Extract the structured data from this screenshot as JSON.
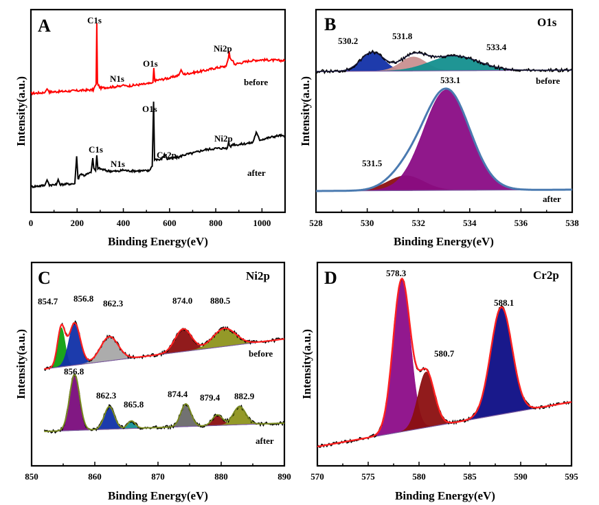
{
  "chart_data": [
    {
      "panel_label": "A",
      "type": "line",
      "xlabel": "Binding Energy(eV)",
      "ylabel": "Intensity(a.u.)",
      "xlim": [
        0,
        1100
      ],
      "xticks": [
        0,
        200,
        400,
        600,
        800,
        1000
      ],
      "series": [
        {
          "name": "before",
          "color": "#ff0000",
          "points": [
            [
              0,
              0.6
            ],
            [
              60,
              0.605
            ],
            [
              70,
              0.625
            ],
            [
              80,
              0.608
            ],
            [
              150,
              0.612
            ],
            [
              270,
              0.62
            ],
            [
              282,
              0.65
            ],
            [
              285,
              0.985
            ],
            [
              288,
              0.655
            ],
            [
              300,
              0.63
            ],
            [
              390,
              0.64
            ],
            [
              400,
              0.648
            ],
            [
              410,
              0.64
            ],
            [
              520,
              0.655
            ],
            [
              528,
              0.66
            ],
            [
              532,
              0.74
            ],
            [
              536,
              0.67
            ],
            [
              600,
              0.685
            ],
            [
              640,
              0.7
            ],
            [
              650,
              0.73
            ],
            [
              660,
              0.705
            ],
            [
              750,
              0.725
            ],
            [
              800,
              0.74
            ],
            [
              845,
              0.75
            ],
            [
              855,
              0.795
            ],
            [
              858,
              0.83
            ],
            [
              862,
              0.79
            ],
            [
              875,
              0.78
            ],
            [
              880,
              0.76
            ],
            [
              950,
              0.78
            ],
            [
              1000,
              0.785
            ],
            [
              1100,
              0.78
            ]
          ]
        },
        {
          "name": "after",
          "color": "#000000",
          "points": [
            [
              0,
              0.088
            ],
            [
              60,
              0.095
            ],
            [
              70,
              0.125
            ],
            [
              80,
              0.098
            ],
            [
              110,
              0.098
            ],
            [
              118,
              0.128
            ],
            [
              126,
              0.1
            ],
            [
              190,
              0.105
            ],
            [
              198,
              0.255
            ],
            [
              204,
              0.128
            ],
            [
              215,
              0.16
            ],
            [
              230,
              0.15
            ],
            [
              260,
              0.165
            ],
            [
              268,
              0.245
            ],
            [
              272,
              0.19
            ],
            [
              280,
              0.175
            ],
            [
              285,
              0.26
            ],
            [
              290,
              0.19
            ],
            [
              330,
              0.175
            ],
            [
              380,
              0.172
            ],
            [
              400,
              0.18
            ],
            [
              420,
              0.175
            ],
            [
              510,
              0.175
            ],
            [
              525,
              0.2
            ],
            [
              531,
              0.555
            ],
            [
              535,
              0.24
            ],
            [
              560,
              0.235
            ],
            [
              575,
              0.255
            ],
            [
              578,
              0.27
            ],
            [
              590,
              0.24
            ],
            [
              640,
              0.25
            ],
            [
              660,
              0.262
            ],
            [
              700,
              0.272
            ],
            [
              750,
              0.29
            ],
            [
              800,
              0.298
            ],
            [
              850,
              0.3
            ],
            [
              855,
              0.33
            ],
            [
              862,
              0.305
            ],
            [
              875,
              0.322
            ],
            [
              890,
              0.318
            ],
            [
              960,
              0.33
            ],
            [
              975,
              0.385
            ],
            [
              990,
              0.345
            ],
            [
              1040,
              0.36
            ],
            [
              1080,
              0.37
            ],
            [
              1100,
              0.36
            ]
          ]
        }
      ],
      "annotations": [
        {
          "text": "C1s",
          "x": 285,
          "y": 1.05
        },
        {
          "text": "N1s",
          "x": 388,
          "y": 0.73
        },
        {
          "text": "O1s",
          "x": 530,
          "y": 0.82
        },
        {
          "text": "Ni2p",
          "x": 848,
          "y": 0.92
        },
        {
          "text": "before",
          "x": 1010,
          "y": 0.66
        },
        {
          "text": "O1s",
          "x": 530,
          "y": 0.62
        },
        {
          "text": "C1s",
          "x": 295,
          "y": 0.37
        },
        {
          "text": "N1s",
          "x": 390,
          "y": 0.21
        },
        {
          "text": "Cr2p",
          "x": 600,
          "y": 0.34
        },
        {
          "text": "Ni2p",
          "x": 855,
          "y": 0.39
        },
        {
          "text": "after",
          "x": 1000,
          "y": 0.16
        }
      ]
    },
    {
      "panel_label": "B",
      "title": "O1s",
      "type": "line",
      "xlabel": "Binding Energy(eV)",
      "ylabel": "Intensity(a.u.)",
      "xlim": [
        528,
        538
      ],
      "xticks": [
        528,
        530,
        532,
        534,
        536,
        538
      ],
      "curves": [
        {
          "condition": "before",
          "components": [
            {
              "center": 530.2,
              "height": 0.115,
              "width": 0.45,
              "fill": "#1230a8"
            },
            {
              "center": 531.8,
              "height": 0.085,
              "width": 0.5,
              "fill": "#c99090"
            },
            {
              "center": 533.4,
              "height": 0.09,
              "width": 0.95,
              "fill": "#138f8e"
            }
          ]
        },
        {
          "condition": "after",
          "components": [
            {
              "center": 531.5,
              "height": 0.09,
              "width": 0.7,
              "fill": "#8b0f10"
            },
            {
              "center": 533.1,
              "height": 0.61,
              "width": 0.9,
              "fill": "#8a0c85"
            }
          ]
        }
      ],
      "annotations": [
        {
          "text": "530.2",
          "x": 530.2
        },
        {
          "text": "531.8",
          "x": 531.8
        },
        {
          "text": "533.4",
          "x": 533.4
        },
        {
          "text": "533.1",
          "x": 533.1
        },
        {
          "text": "531.5",
          "x": 531.5
        },
        {
          "text": "before",
          "x": 537.5
        },
        {
          "text": "after",
          "x": 537.5
        }
      ]
    },
    {
      "panel_label": "C",
      "title": "Ni2p",
      "type": "line",
      "xlabel": "Binding Energy(eV)",
      "ylabel": "Intensity(a.u.)",
      "xlim": [
        850,
        890
      ],
      "xticks": [
        850,
        860,
        870,
        880,
        890
      ],
      "curves": [
        {
          "condition": "before",
          "components": [
            {
              "center": 854.7,
              "height": 0.26,
              "width": 0.6,
              "fill": "#0f9f0f"
            },
            {
              "center": 856.8,
              "height": 0.28,
              "width": 0.9,
              "fill": "#1030a8"
            },
            {
              "center": 862.3,
              "height": 0.16,
              "width": 1.4,
              "fill": "#a8a8a8"
            },
            {
              "center": 874.0,
              "height": 0.15,
              "width": 1.3,
              "fill": "#8b0f10"
            },
            {
              "center": 880.5,
              "height": 0.12,
              "width": 1.8,
              "fill": "#8e941c"
            }
          ]
        },
        {
          "condition": "after",
          "components": [
            {
              "center": 856.8,
              "height": 0.37,
              "width": 0.8,
              "fill": "#7a0c7c"
            },
            {
              "center": 862.3,
              "height": 0.15,
              "width": 0.8,
              "fill": "#1030a8"
            },
            {
              "center": 865.8,
              "height": 0.05,
              "width": 0.6,
              "fill": "#139092"
            },
            {
              "center": 874.4,
              "height": 0.15,
              "width": 0.8,
              "fill": "#6a6a6a"
            },
            {
              "center": 879.4,
              "height": 0.07,
              "width": 0.8,
              "fill": "#8b0f10"
            },
            {
              "center": 882.9,
              "height": 0.12,
              "width": 1.0,
              "fill": "#8e941c"
            }
          ]
        }
      ],
      "annotations": [
        {
          "text": "854.7",
          "x": 854.7
        },
        {
          "text": "856.8",
          "x": 856.8
        },
        {
          "text": "862.3",
          "x": 862.3
        },
        {
          "text": "874.0",
          "x": 874.0
        },
        {
          "text": "880.5",
          "x": 880.5
        },
        {
          "text": "856.8",
          "x": 856.8
        },
        {
          "text": "862.3",
          "x": 862.3
        },
        {
          "text": "865.8",
          "x": 865.8
        },
        {
          "text": "874.4",
          "x": 874.4
        },
        {
          "text": "879.4",
          "x": 879.4
        },
        {
          "text": "882.9",
          "x": 882.9
        },
        {
          "text": "before",
          "x": 887
        },
        {
          "text": "after",
          "x": 887
        }
      ]
    },
    {
      "panel_label": "D",
      "title": "Cr2p",
      "type": "line",
      "xlabel": "Binding Energy(eV)",
      "ylabel": "Intensity(a.u.)",
      "xlim": [
        570,
        595
      ],
      "xticks": [
        570,
        575,
        580,
        585,
        590,
        595
      ],
      "components": [
        {
          "center": 578.3,
          "height": 0.74,
          "width": 0.85,
          "fill": "#8c0c88"
        },
        {
          "center": 580.7,
          "height": 0.27,
          "width": 0.8,
          "fill": "#8b0f10"
        },
        {
          "center": 588.1,
          "height": 0.52,
          "width": 1.05,
          "fill": "#0d0d85"
        }
      ],
      "annotations": [
        {
          "text": "578.3",
          "x": 578.3
        },
        {
          "text": "580.7",
          "x": 580.7
        },
        {
          "text": "588.1",
          "x": 588.1
        }
      ]
    }
  ],
  "colors": {
    "envelope_red": "#ff2020",
    "envelope_blue": "#4a7ab0",
    "raw": "#000000",
    "background_line": "#7a5aa0"
  }
}
